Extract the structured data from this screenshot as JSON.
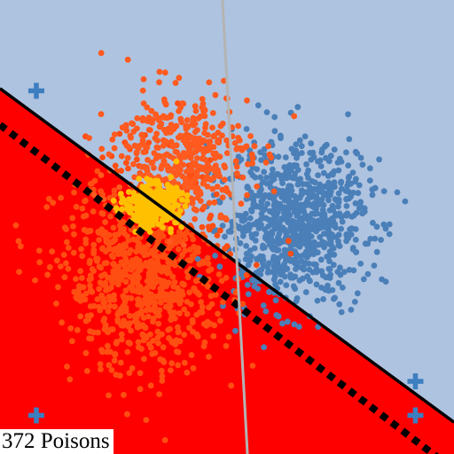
{
  "chart_data": {
    "type": "scatter",
    "title": "",
    "xlabel": "",
    "ylabel": "",
    "xlim": [
      0,
      10
    ],
    "ylim": [
      0,
      10
    ],
    "grid": false,
    "regions": {
      "upper_class_color": "#aec3e0",
      "lower_class_color": "#ff0000"
    },
    "boundaries": [
      {
        "name": "learned-boundary",
        "style": "solid",
        "color": "#000000",
        "points": [
          [
            0,
            8.05
          ],
          [
            10,
            0.7
          ]
        ]
      },
      {
        "name": "clean-boundary",
        "style": "dotted",
        "color": "#000000",
        "points": [
          [
            0,
            7.25
          ],
          [
            10,
            -0.35
          ]
        ]
      },
      {
        "name": "gray-boundary",
        "style": "solid",
        "color": "#b4b4b4",
        "points": [
          [
            4.9,
            10
          ],
          [
            5.45,
            0
          ]
        ]
      }
    ],
    "series": [
      {
        "name": "class-blue",
        "color": "#4a7fb8",
        "cx": 6.5,
        "cy": 5.1,
        "sx": 0.8,
        "sy": 0.85,
        "n": 900,
        "rot": -0.15
      },
      {
        "name": "class-red",
        "color": "#ff4e12",
        "cx": 3.2,
        "cy": 4.0,
        "sx": 0.9,
        "sy": 1.1,
        "n": 850,
        "rot": 0.1
      },
      {
        "name": "class-orange",
        "color": "#ff5a1f",
        "cx": 4.0,
        "cy": 6.6,
        "sx": 0.75,
        "sy": 0.7,
        "n": 420,
        "rot": 0
      },
      {
        "name": "poison-points",
        "color": "#ffc000",
        "cx": 3.35,
        "cy": 5.5,
        "sx": 0.28,
        "sy": 0.22,
        "n": 372,
        "rot": 0
      }
    ],
    "markers": {
      "symbol": "plus",
      "color": "#3c7ec0",
      "points": [
        [
          0.8,
          8.0
        ],
        [
          0.8,
          0.85
        ],
        [
          9.15,
          1.6
        ],
        [
          9.15,
          0.85
        ]
      ]
    },
    "annotation": "372 Poisons"
  }
}
